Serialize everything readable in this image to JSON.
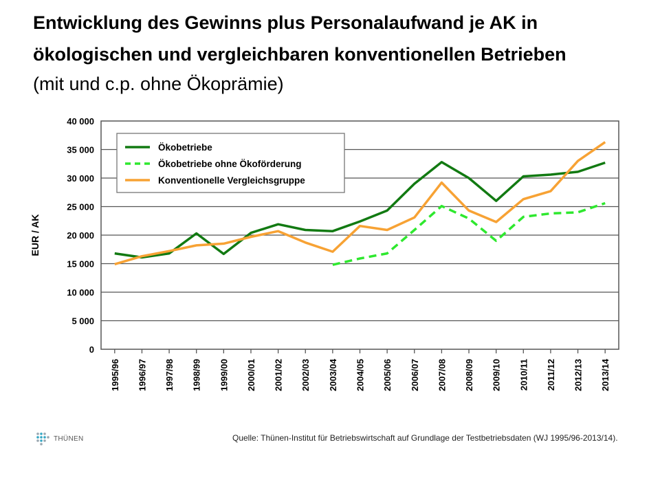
{
  "title_line1": "Entwicklung des Gewinns plus Personalaufwand je AK in",
  "title_line2": "ökologischen und vergleichbaren konventionellen Betrieben",
  "subtitle": "(mit und c.p. ohne Ökoprämie)",
  "logo_text": "THÜNEN",
  "source": "Quelle: Thünen-Institut für Betriebswirtschaft auf Grundlage der Testbetriebsdaten (WJ 1995/96-2013/14).",
  "colors": {
    "oeko": "#127a12",
    "oeko_ohne": "#2ee82e",
    "konv": "#f7a234",
    "grid": "#555555"
  },
  "chart_data": {
    "type": "line",
    "title": "Entwicklung des Gewinns plus Personalaufwand je AK in ökologischen und vergleichbaren konventionellen Betrieben",
    "subtitle": "(mit und c.p. ohne Ökoprämie)",
    "xlabel": "",
    "ylabel": "EUR / AK",
    "ylim": [
      0,
      40000
    ],
    "yticks": [
      0,
      5000,
      10000,
      15000,
      20000,
      25000,
      30000,
      35000,
      40000
    ],
    "ytick_labels": [
      "0",
      "5 000",
      "10 000",
      "15 000",
      "20 000",
      "25 000",
      "30 000",
      "35 000",
      "40 000"
    ],
    "grid": "horizontal",
    "legend_position": "top-left",
    "categories": [
      "1995/96",
      "1996/97",
      "1997/98",
      "1998/99",
      "1999/00",
      "2000/01",
      "2001/02",
      "2002/03",
      "2003/04",
      "2004/05",
      "2005/06",
      "2006/07",
      "2007/08",
      "2008/09",
      "2009/10",
      "2010/11",
      "2011/12",
      "2012/13",
      "2013/14"
    ],
    "series": [
      {
        "name": "Ökobetriebe",
        "style": "solid",
        "values": [
          16800,
          16100,
          16800,
          20300,
          16700,
          20400,
          21900,
          20900,
          20700,
          22400,
          24300,
          29000,
          32800,
          30000,
          26000,
          30300,
          30600,
          31100,
          32700
        ]
      },
      {
        "name": "Ökobetriebe ohne Ökoförderung",
        "style": "dashed",
        "values": [
          null,
          null,
          null,
          null,
          null,
          null,
          null,
          null,
          14800,
          15900,
          16800,
          20900,
          25100,
          22900,
          19000,
          23200,
          23800,
          24000,
          25600
        ]
      },
      {
        "name": "Konventionelle Vergleichsgruppe",
        "style": "solid",
        "values": [
          14900,
          16300,
          17200,
          18200,
          18500,
          19700,
          20700,
          18700,
          17100,
          21600,
          20900,
          23100,
          29200,
          24300,
          22300,
          26300,
          27700,
          33000,
          36300
        ]
      }
    ]
  }
}
